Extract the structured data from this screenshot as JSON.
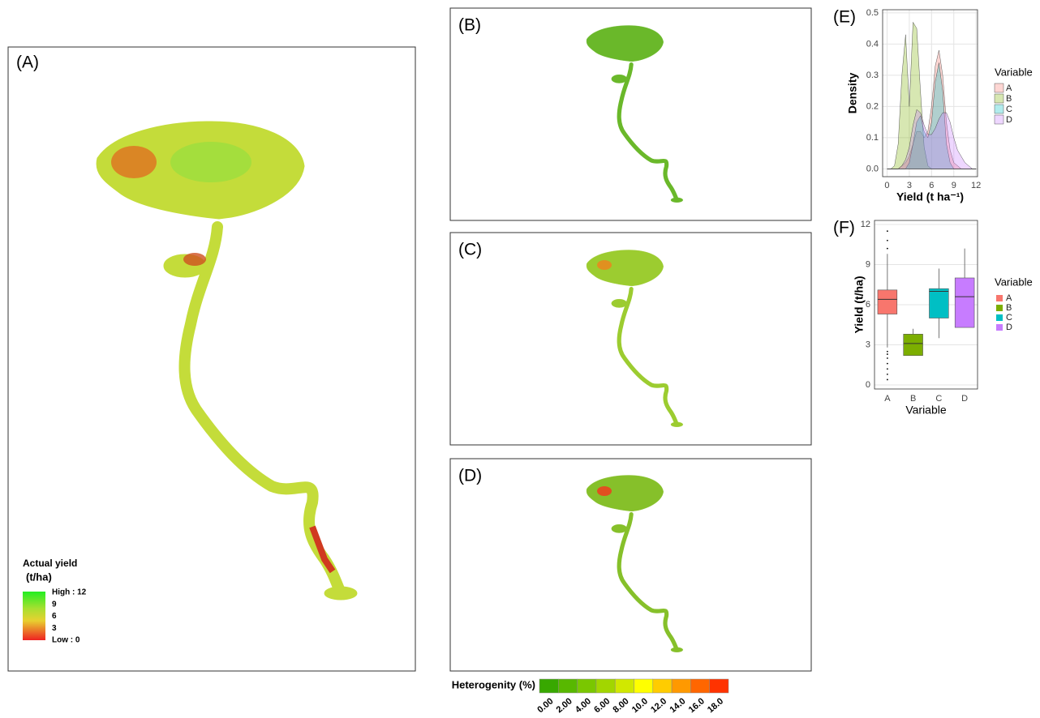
{
  "panels": {
    "a": "(A)",
    "b": "(B)",
    "c": "(C)",
    "d": "(D)"
  },
  "yield_legend": {
    "title": "Actual yield",
    "unit": "(t/ha)",
    "labels": [
      "High : 12",
      "9",
      "6",
      "3",
      "Low : 0"
    ]
  },
  "heterogeneity_legend": {
    "title": "Heterogenity (%)",
    "colors": [
      "#38a800",
      "#58b800",
      "#7ac700",
      "#a2d600",
      "#d1e800",
      "#ffff00",
      "#ffcc00",
      "#ff9900",
      "#ff6600",
      "#ff3300"
    ],
    "ticks": [
      {
        "value": 0,
        "label": "0.00"
      },
      {
        "value": 2,
        "label": "2.00"
      },
      {
        "value": 4,
        "label": "4.00"
      },
      {
        "value": 6,
        "label": "6.00"
      },
      {
        "value": 8,
        "label": "8.00"
      },
      {
        "value": 10,
        "label": "10.0"
      },
      {
        "value": 12,
        "label": "12.0"
      },
      {
        "value": 14,
        "label": "14.0"
      },
      {
        "value": 16,
        "label": "16.0"
      },
      {
        "value": 18,
        "label": "18.0"
      }
    ]
  },
  "chart_data": [
    {
      "type": "area",
      "panel_label": "(E)",
      "xlabel": "Yield (t ha⁻¹)",
      "ylabel": "Density",
      "legend_title": "Variable",
      "x": [
        0,
        0.5,
        1,
        1.5,
        2,
        2.5,
        3,
        3.5,
        4,
        4.5,
        5,
        5.5,
        6,
        6.5,
        7,
        7.5,
        8,
        8.5,
        9,
        9.5,
        10,
        10.5,
        11,
        11.5,
        12
      ],
      "xlim": [
        -0.6,
        12.2
      ],
      "ylim": [
        -0.025,
        0.51
      ],
      "xticks": [
        0,
        3,
        6,
        9,
        12
      ],
      "yticks": [
        {
          "value": 0,
          "label": "0.0"
        },
        {
          "value": 0.1,
          "label": "0.1"
        },
        {
          "value": 0.2,
          "label": "0.2"
        },
        {
          "value": 0.3,
          "label": "0.3"
        },
        {
          "value": 0.4,
          "label": "0.4"
        },
        {
          "value": 0.5,
          "label": "0.5"
        }
      ],
      "grid": true,
      "series": [
        {
          "name": "A",
          "color": "#F8766D",
          "values": [
            0,
            0,
            0,
            0,
            0.01,
            0.02,
            0.04,
            0.08,
            0.12,
            0.12,
            0.1,
            0.12,
            0.2,
            0.33,
            0.38,
            0.3,
            0.15,
            0.06,
            0.02,
            0.01,
            0,
            0,
            0,
            0,
            0
          ]
        },
        {
          "name": "B",
          "color": "#7CAE00",
          "values": [
            0,
            0,
            0.01,
            0.08,
            0.3,
            0.43,
            0.2,
            0.47,
            0.45,
            0.25,
            0.07,
            0.01,
            0,
            0,
            0,
            0,
            0,
            0,
            0,
            0,
            0,
            0,
            0,
            0,
            0
          ]
        },
        {
          "name": "C",
          "color": "#00BFC4",
          "values": [
            0,
            0,
            0,
            0,
            0,
            0,
            0.02,
            0.08,
            0.15,
            0.17,
            0.12,
            0.1,
            0.15,
            0.28,
            0.34,
            0.25,
            0.08,
            0.02,
            0,
            0,
            0,
            0,
            0,
            0,
            0
          ]
        },
        {
          "name": "D",
          "color": "#C77CFF",
          "values": [
            0,
            0,
            0,
            0,
            0.01,
            0.03,
            0.07,
            0.14,
            0.19,
            0.18,
            0.14,
            0.11,
            0.11,
            0.13,
            0.16,
            0.18,
            0.18,
            0.15,
            0.1,
            0.06,
            0.04,
            0.02,
            0.01,
            0,
            0
          ]
        }
      ]
    },
    {
      "type": "box",
      "panel_label": "(F)",
      "xlabel": "Variable",
      "ylabel": "Yield (t/ha)",
      "legend_title": "Variable",
      "categories": [
        "A",
        "B",
        "C",
        "D"
      ],
      "ylim": [
        -0.3,
        12.3
      ],
      "yticks": [
        0,
        3,
        6,
        9,
        12
      ],
      "grid": true,
      "series": [
        {
          "name": "A",
          "color": "#F8766D",
          "low": 2.8,
          "q1": 5.3,
          "median": 6.4,
          "q3": 7.1,
          "high": 9.8,
          "outliers": [
            0.4,
            0.8,
            1.2,
            1.6,
            2.0,
            2.3,
            2.5,
            10.2,
            10.8,
            11.5
          ]
        },
        {
          "name": "B",
          "color": "#7CAE00",
          "low": 2.2,
          "q1": 2.2,
          "median": 3.1,
          "q3": 3.8,
          "high": 4.2,
          "outliers": []
        },
        {
          "name": "C",
          "color": "#00BFC4",
          "low": 3.5,
          "q1": 5.0,
          "median": 7.0,
          "q3": 7.2,
          "high": 8.7,
          "outliers": []
        },
        {
          "name": "D",
          "color": "#C77CFF",
          "low": 4.3,
          "q1": 4.3,
          "median": 6.6,
          "q3": 8.0,
          "high": 10.2,
          "outliers": []
        }
      ]
    }
  ]
}
